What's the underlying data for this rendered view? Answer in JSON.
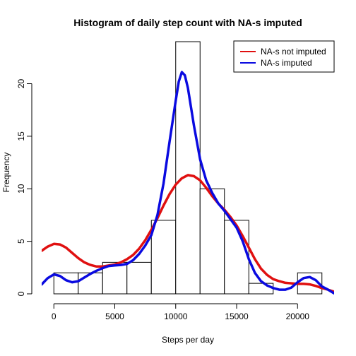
{
  "chart_data": {
    "type": "histogram",
    "title": "Histogram of daily step count with NA-s imputed",
    "xlabel": "Steps per day",
    "ylabel": "Frequency",
    "xlim": [
      -1000,
      23000
    ],
    "ylim": [
      0,
      24
    ],
    "x_ticks": [
      0,
      5000,
      10000,
      15000,
      20000
    ],
    "y_ticks": [
      0,
      5,
      10,
      15,
      20
    ],
    "bins": [
      {
        "from": 0,
        "to": 2000,
        "count": 2
      },
      {
        "from": 2000,
        "to": 4000,
        "count": 2
      },
      {
        "from": 4000,
        "to": 6000,
        "count": 3
      },
      {
        "from": 6000,
        "to": 8000,
        "count": 3
      },
      {
        "from": 8000,
        "to": 10000,
        "count": 7
      },
      {
        "from": 10000,
        "to": 12000,
        "count": 24
      },
      {
        "from": 12000,
        "to": 14000,
        "count": 10
      },
      {
        "from": 14000,
        "to": 16000,
        "count": 7
      },
      {
        "from": 16000,
        "to": 18000,
        "count": 1
      },
      {
        "from": 18000,
        "to": 20000,
        "count": 0
      },
      {
        "from": 20000,
        "to": 22000,
        "count": 2
      }
    ],
    "series": [
      {
        "name": "NA-s not imputed",
        "color": "#e01010",
        "points": [
          [
            -1000,
            4.1
          ],
          [
            -500,
            4.5
          ],
          [
            0,
            4.75
          ],
          [
            500,
            4.7
          ],
          [
            1000,
            4.4
          ],
          [
            1500,
            3.9
          ],
          [
            2000,
            3.4
          ],
          [
            2500,
            3.0
          ],
          [
            3000,
            2.75
          ],
          [
            3500,
            2.6
          ],
          [
            4000,
            2.6
          ],
          [
            4500,
            2.7
          ],
          [
            5000,
            2.8
          ],
          [
            5500,
            3.0
          ],
          [
            6000,
            3.3
          ],
          [
            6500,
            3.7
          ],
          [
            7000,
            4.3
          ],
          [
            7500,
            5.1
          ],
          [
            8000,
            6.1
          ],
          [
            8500,
            7.2
          ],
          [
            9000,
            8.4
          ],
          [
            9500,
            9.5
          ],
          [
            10000,
            10.4
          ],
          [
            10500,
            11.0
          ],
          [
            11000,
            11.3
          ],
          [
            11500,
            11.2
          ],
          [
            12000,
            10.8
          ],
          [
            12500,
            10.1
          ],
          [
            13000,
            9.3
          ],
          [
            13500,
            8.6
          ],
          [
            14000,
            8.0
          ],
          [
            14500,
            7.3
          ],
          [
            15000,
            6.5
          ],
          [
            15500,
            5.5
          ],
          [
            16000,
            4.4
          ],
          [
            16500,
            3.3
          ],
          [
            17000,
            2.4
          ],
          [
            17500,
            1.8
          ],
          [
            18000,
            1.4
          ],
          [
            18500,
            1.2
          ],
          [
            19000,
            1.05
          ],
          [
            19500,
            1.0
          ],
          [
            20000,
            0.95
          ],
          [
            20500,
            0.95
          ],
          [
            21000,
            0.9
          ],
          [
            21500,
            0.75
          ],
          [
            22000,
            0.55
          ],
          [
            22500,
            0.4
          ],
          [
            23000,
            0.2
          ]
        ]
      },
      {
        "name": "NA-s imputed",
        "color": "#0a0ae0",
        "points": [
          [
            -1000,
            0.9
          ],
          [
            -500,
            1.5
          ],
          [
            0,
            1.85
          ],
          [
            500,
            1.7
          ],
          [
            1000,
            1.3
          ],
          [
            1500,
            1.1
          ],
          [
            2000,
            1.2
          ],
          [
            2500,
            1.55
          ],
          [
            3000,
            1.9
          ],
          [
            3500,
            2.2
          ],
          [
            4000,
            2.45
          ],
          [
            4500,
            2.65
          ],
          [
            5000,
            2.7
          ],
          [
            5500,
            2.75
          ],
          [
            6000,
            2.85
          ],
          [
            6500,
            3.2
          ],
          [
            7000,
            3.8
          ],
          [
            7500,
            4.6
          ],
          [
            8000,
            5.6
          ],
          [
            8500,
            7.5
          ],
          [
            9000,
            10.5
          ],
          [
            9500,
            14.5
          ],
          [
            10000,
            18.4
          ],
          [
            10250,
            20.2
          ],
          [
            10500,
            21.1
          ],
          [
            10750,
            20.8
          ],
          [
            11000,
            19.6
          ],
          [
            11500,
            16.0
          ],
          [
            12000,
            12.8
          ],
          [
            12500,
            10.8
          ],
          [
            13000,
            9.6
          ],
          [
            13500,
            8.6
          ],
          [
            14000,
            7.9
          ],
          [
            14500,
            7.1
          ],
          [
            15000,
            6.3
          ],
          [
            15500,
            5.0
          ],
          [
            16000,
            3.3
          ],
          [
            16500,
            2.0
          ],
          [
            17000,
            1.2
          ],
          [
            17500,
            0.8
          ],
          [
            18000,
            0.55
          ],
          [
            18500,
            0.4
          ],
          [
            19000,
            0.4
          ],
          [
            19500,
            0.6
          ],
          [
            20000,
            1.1
          ],
          [
            20500,
            1.5
          ],
          [
            21000,
            1.6
          ],
          [
            21500,
            1.3
          ],
          [
            22000,
            0.7
          ],
          [
            22500,
            0.4
          ],
          [
            23000,
            0.05
          ]
        ]
      }
    ],
    "legend": {
      "placement": "top-right",
      "entries": [
        "NA-s not imputed",
        "NA-s imputed"
      ]
    }
  }
}
